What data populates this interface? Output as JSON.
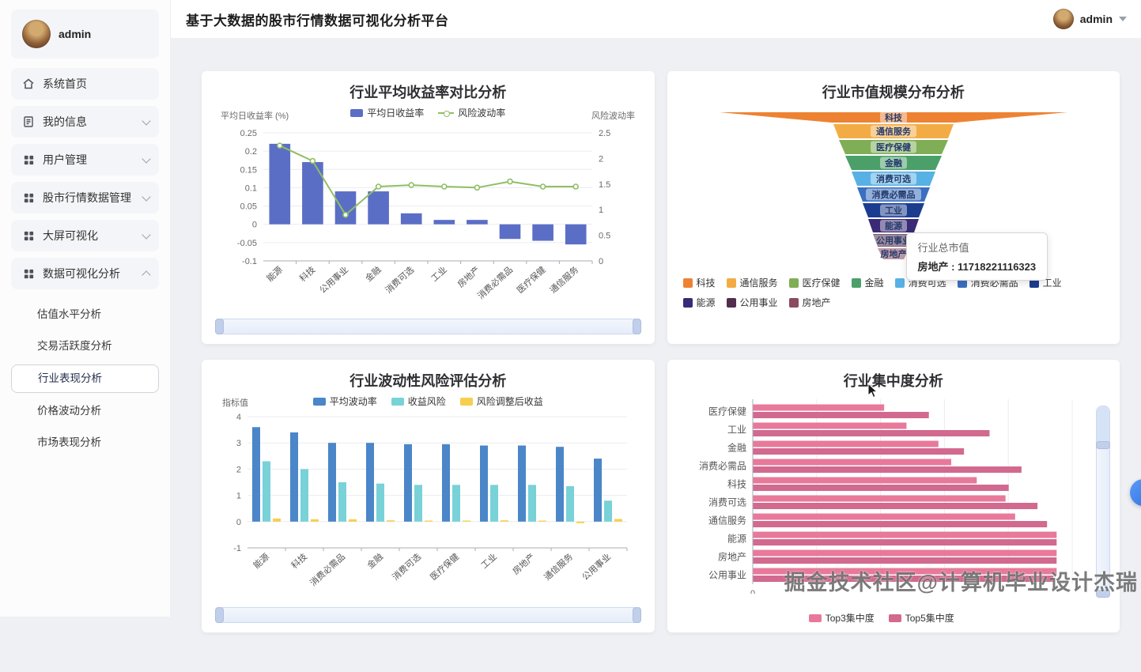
{
  "app": {
    "title": "基于大数据的股市行情数据可视化分析平台"
  },
  "header": {
    "user": "admin"
  },
  "sidebar": {
    "user": "admin",
    "items": [
      {
        "label": "系统首页",
        "icon": "home-icon"
      },
      {
        "label": "我的信息",
        "icon": "document-icon",
        "chevron": "down"
      },
      {
        "label": "用户管理",
        "icon": "grid-icon",
        "chevron": "down"
      },
      {
        "label": "股市行情数据管理",
        "icon": "grid-icon",
        "chevron": "down"
      },
      {
        "label": "大屏可视化",
        "icon": "grid-icon",
        "chevron": "down"
      },
      {
        "label": "数据可视化分析",
        "icon": "grid-icon",
        "chevron": "up",
        "expanded": true
      }
    ],
    "subitems": [
      {
        "label": "估值水平分析",
        "active": false
      },
      {
        "label": "交易活跃度分析",
        "active": false
      },
      {
        "label": "行业表现分析",
        "active": true
      },
      {
        "label": "价格波动分析",
        "active": false
      },
      {
        "label": "市场表现分析",
        "active": false
      }
    ]
  },
  "watermark": "掘金技术社区@计算机毕业设计杰瑞",
  "chart_data": [
    {
      "type": "bar",
      "title": "行业平均收益率对比分析",
      "categories": [
        "能源",
        "科技",
        "公用事业",
        "金融",
        "消费可选",
        "工业",
        "房地产",
        "消费必需品",
        "医疗保健",
        "通信服务"
      ],
      "series": [
        {
          "name": "平均日收益率",
          "type": "bar",
          "axis": "left",
          "color": "#5b6ec6",
          "values": [
            0.22,
            0.17,
            0.09,
            0.09,
            0.03,
            0.012,
            0.012,
            -0.04,
            -0.045,
            -0.055
          ]
        },
        {
          "name": "风险波动率",
          "type": "line",
          "axis": "right",
          "color": "#8fbf64",
          "values": [
            2.25,
            1.95,
            0.9,
            1.45,
            1.48,
            1.45,
            1.43,
            1.55,
            1.45,
            1.45
          ]
        }
      ],
      "left_axis": {
        "name": "平均日收益率 (%)",
        "min": -0.1,
        "max": 0.25,
        "ticks": [
          0.25,
          0.2,
          0.15,
          0.1,
          0.05,
          0,
          -0.05,
          -0.1
        ]
      },
      "right_axis": {
        "name": "风险波动率",
        "min": 0,
        "max": 2.5,
        "ticks": [
          2.5,
          2,
          1.5,
          1,
          0.5,
          0
        ]
      },
      "datazoom": true
    },
    {
      "type": "funnel",
      "title": "行业市值规模分布分析",
      "items": [
        {
          "name": "科技",
          "color": "#ee8233",
          "widths": [
            440,
            158
          ],
          "height": 13
        },
        {
          "name": "通信服务",
          "color": "#f3ac45",
          "widths": [
            152,
            138
          ],
          "height": 18
        },
        {
          "name": "医疗保健",
          "color": "#7fae56",
          "widths": [
            138,
            122
          ],
          "height": 18
        },
        {
          "name": "金融",
          "color": "#4ba06a",
          "widths": [
            122,
            106
          ],
          "height": 18
        },
        {
          "name": "消费可选",
          "color": "#58b1e4",
          "widths": [
            106,
            92
          ],
          "height": 18
        },
        {
          "name": "消费必需品",
          "color": "#3b6fc0",
          "widths": [
            92,
            78
          ],
          "height": 18
        },
        {
          "name": "工业",
          "color": "#1c3d8f",
          "widths": [
            78,
            64
          ],
          "height": 18
        },
        {
          "name": "能源",
          "color": "#3b2a76",
          "widths": [
            64,
            52
          ],
          "height": 17
        },
        {
          "name": "公用事业",
          "color": "#522e4e",
          "widths": [
            52,
            40
          ],
          "height": 16
        },
        {
          "name": "房地产",
          "color": "#8a4a62",
          "widths": [
            40,
            26
          ],
          "height": 14
        }
      ],
      "tooltip": {
        "title": "行业总市值",
        "text": "房地产 : 11718221116323"
      }
    },
    {
      "type": "bar",
      "title": "行业波动性风险评估分析",
      "categories": [
        "能源",
        "科技",
        "消费必需品",
        "金融",
        "消费可选",
        "医疗保健",
        "工业",
        "房地产",
        "通信服务",
        "公用事业"
      ],
      "series": [
        {
          "name": "平均波动率",
          "color": "#4a86c8",
          "values": [
            3.6,
            3.4,
            3.0,
            3.0,
            2.95,
            2.95,
            2.9,
            2.9,
            2.85,
            2.4
          ]
        },
        {
          "name": "收益风险",
          "color": "#78d2d8",
          "values": [
            2.3,
            2.0,
            1.5,
            1.45,
            1.4,
            1.4,
            1.4,
            1.4,
            1.35,
            0.8
          ]
        },
        {
          "name": "风险调整后收益",
          "color": "#f7cf4f",
          "values": [
            0.12,
            0.09,
            0.09,
            0.05,
            0.04,
            0.04,
            0.05,
            0.04,
            -0.06,
            0.1
          ]
        }
      ],
      "y_axis": {
        "name": "指标值",
        "min": -1,
        "max": 4,
        "ticks": [
          4,
          3,
          2,
          1,
          0,
          -1
        ]
      },
      "datazoom": true
    },
    {
      "type": "bar",
      "orientation": "horizontal",
      "title": "行业集中度分析",
      "categories": [
        "医疗保健",
        "工业",
        "金融",
        "消费必需品",
        "科技",
        "消费可选",
        "通信服务",
        "能源",
        "房地产",
        "公用事业"
      ],
      "series": [
        {
          "name": "Top3集中度",
          "color": "#e8799b",
          "values": [
            41,
            48,
            58,
            62,
            70,
            79,
            82,
            95,
            95,
            95
          ]
        },
        {
          "name": "Top5集中度",
          "color": "#d2698e",
          "values": [
            55,
            74,
            66,
            84,
            80,
            89,
            92,
            95,
            95,
            94
          ]
        }
      ],
      "x_axis": {
        "min": 0,
        "max": 100,
        "grid_ticks": [
          0,
          20,
          40,
          60,
          80,
          100
        ],
        "zero_label": "0"
      },
      "datazoom_vertical": true
    }
  ]
}
